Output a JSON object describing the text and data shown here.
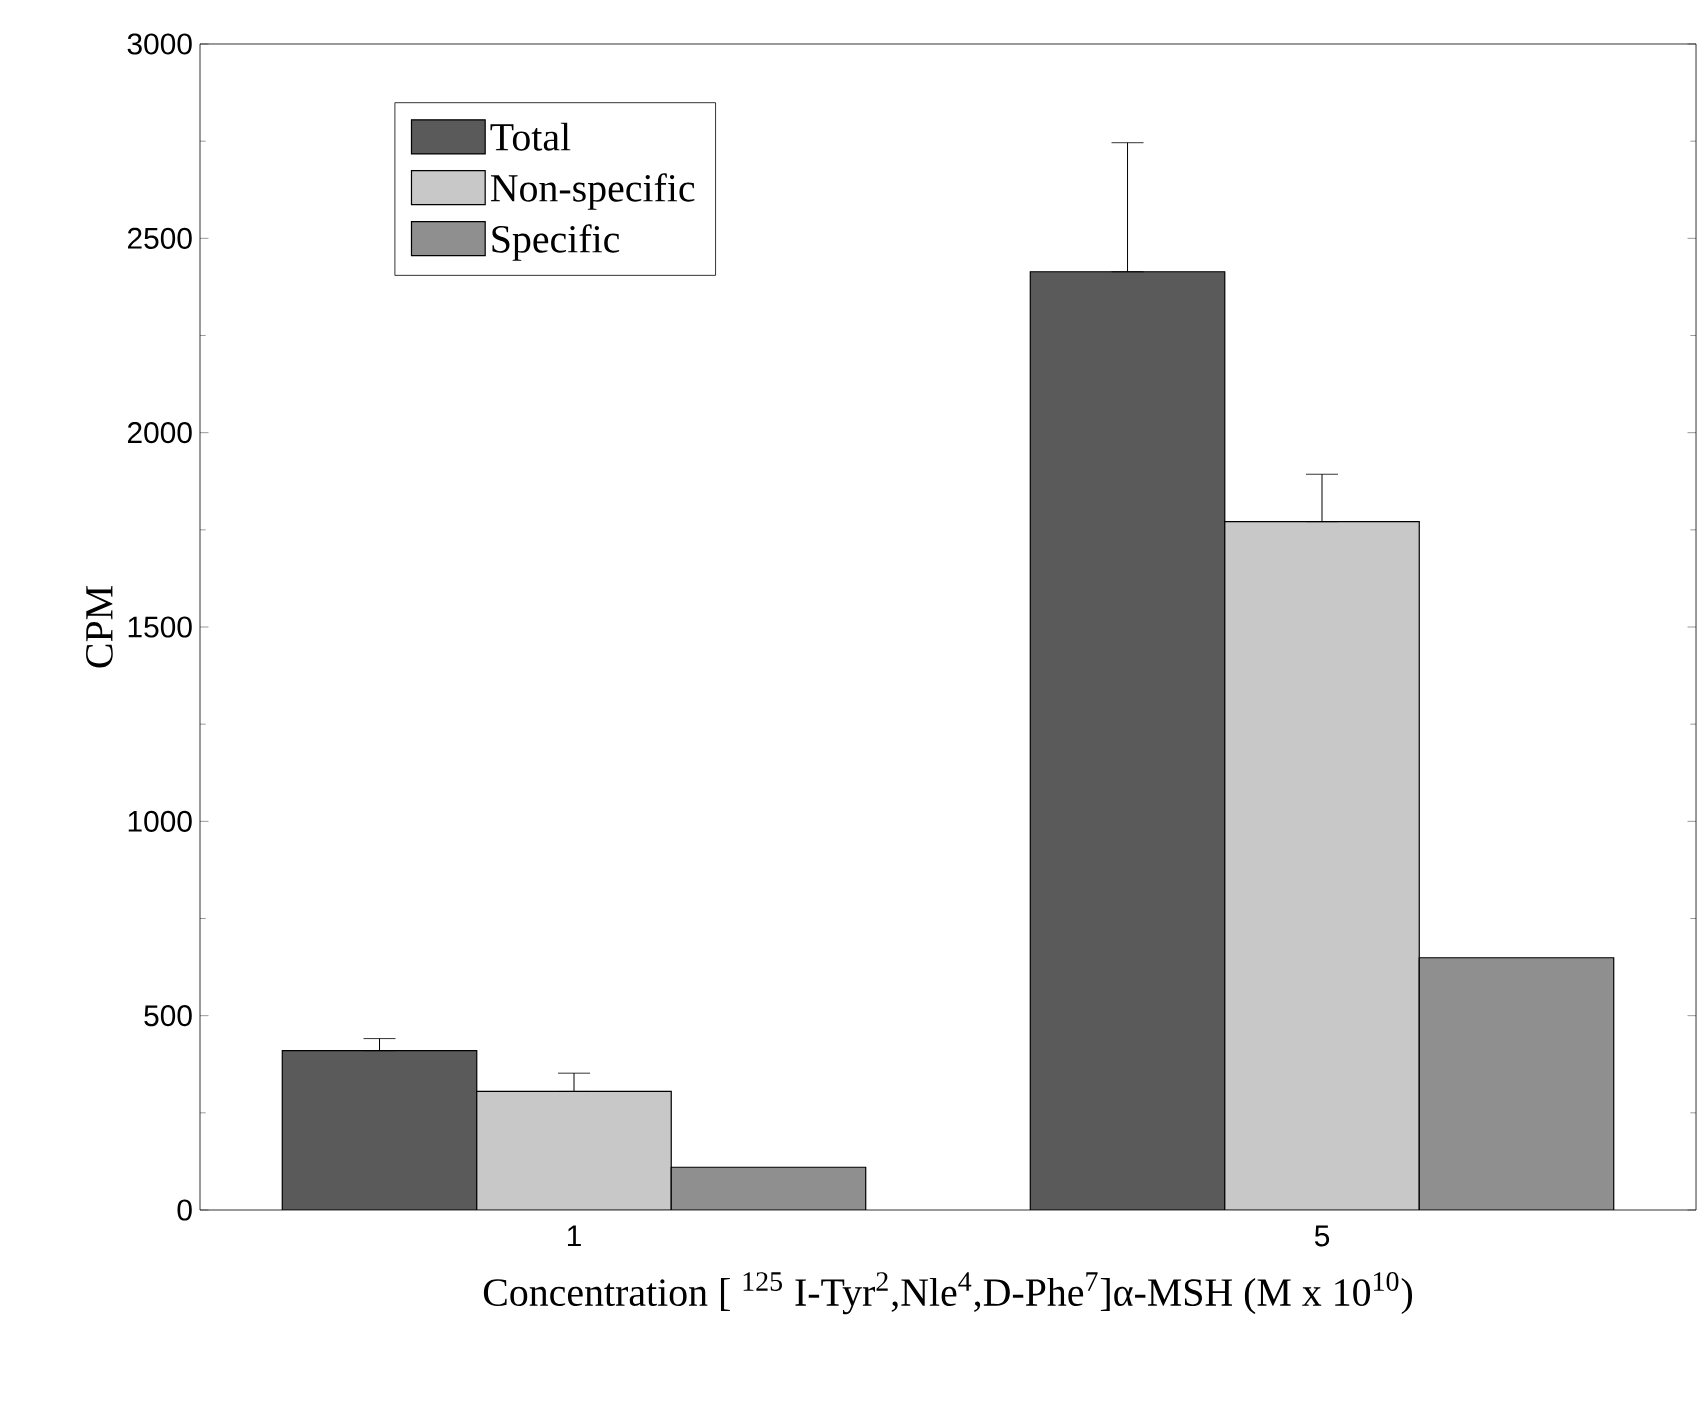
{
  "chart_data": {
    "type": "bar",
    "xlabel": "Concentration [ $^{125}$ I-Tyr$^{2}$,Nle$^{4}$,D-Phe$^{7}$]α-MSH (M x 10$^{10}$)",
    "ylabel": "CPM",
    "categories": [
      "1",
      "5"
    ],
    "series": [
      {
        "name": "Total",
        "color": "#5a5a5a",
        "values": [
          410,
          2414
        ],
        "errors": [
          [
            410,
            441
          ],
          [
            2414,
            2746
          ]
        ]
      },
      {
        "name": "Non-specific",
        "color": "#c8c8c8",
        "values": [
          305,
          1771
        ],
        "errors": [
          [
            305,
            352
          ],
          [
            1771,
            1893
          ]
        ]
      },
      {
        "name": "Specific",
        "color": "#8f8f8f",
        "values": [
          110,
          649
        ]
      }
    ],
    "ylim": [
      0,
      3000
    ],
    "yticks": [
      0,
      500,
      1000,
      1500,
      2000,
      2500,
      3000
    ],
    "legend": "top left",
    "grid": false
  }
}
